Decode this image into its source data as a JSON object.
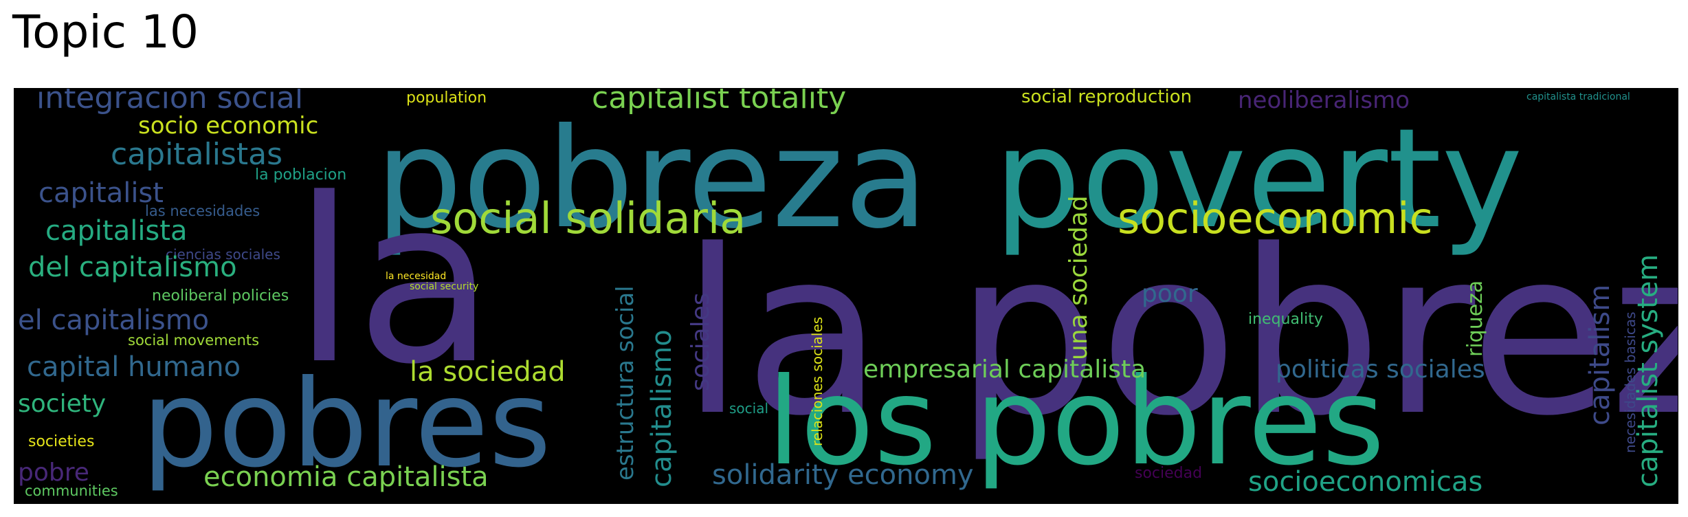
{
  "title": "Topic 10",
  "words": [
    {
      "text": "la pobreza",
      "color": "#46327e"
    },
    {
      "text": "pobreza",
      "color": "#287c8e"
    },
    {
      "text": "poverty",
      "color": "#21918c"
    },
    {
      "text": "los pobres",
      "color": "#22a884"
    },
    {
      "text": "pobres",
      "color": "#33638d"
    },
    {
      "text": "la",
      "color": "#46327e"
    },
    {
      "text": "social solidaria",
      "color": "#a0da39"
    },
    {
      "text": "socioeconomic",
      "color": "#c8e020"
    },
    {
      "text": "capitalist totality",
      "color": "#7ad151"
    },
    {
      "text": "integracion social",
      "color": "#3b528b"
    },
    {
      "text": "socio economic",
      "color": "#cae11f"
    },
    {
      "text": "capitalistas",
      "color": "#2a788e"
    },
    {
      "text": "la poblacion",
      "color": "#1fa187"
    },
    {
      "text": "capitalist",
      "color": "#3b528b"
    },
    {
      "text": "las necesidades",
      "color": "#365c8d"
    },
    {
      "text": "capitalista",
      "color": "#25ab82"
    },
    {
      "text": "ciencias sociales",
      "color": "#3e4989"
    },
    {
      "text": "del capitalismo",
      "color": "#2ab07f"
    },
    {
      "text": "la necesidad",
      "color": "#fde725"
    },
    {
      "text": "social security",
      "color": "#b5de2b"
    },
    {
      "text": "neoliberal policies",
      "color": "#5ec962"
    },
    {
      "text": "el capitalismo",
      "color": "#3b528b"
    },
    {
      "text": "social movements",
      "color": "#a0da39"
    },
    {
      "text": "capital humano",
      "color": "#31688e"
    },
    {
      "text": "society",
      "color": "#2fb47c"
    },
    {
      "text": "societies",
      "color": "#e5e419"
    },
    {
      "text": "pobre",
      "color": "#482878"
    },
    {
      "text": "communities",
      "color": "#5ec962"
    },
    {
      "text": "economia capitalista",
      "color": "#7ad151"
    },
    {
      "text": "la sociedad",
      "color": "#addc30"
    },
    {
      "text": "estructura social",
      "color": "#2a788e"
    },
    {
      "text": "capitalismo",
      "color": "#228d8d"
    },
    {
      "text": "sociales",
      "color": "#443983"
    },
    {
      "text": "relaciones sociales",
      "color": "#dde318"
    },
    {
      "text": "social",
      "color": "#1f9f88"
    },
    {
      "text": "solidarity economy",
      "color": "#31688e"
    },
    {
      "text": "empresarial capitalista",
      "color": "#6ece58"
    },
    {
      "text": "una sociedad",
      "color": "#9bd93c"
    },
    {
      "text": "poor",
      "color": "#31688e"
    },
    {
      "text": "social reproduction",
      "color": "#cae11f"
    },
    {
      "text": "population",
      "color": "#dde318"
    },
    {
      "text": "neoliberalismo",
      "color": "#482575"
    },
    {
      "text": "riqueza",
      "color": "#6ece58"
    },
    {
      "text": "inequality",
      "color": "#40bd72"
    },
    {
      "text": "politicas sociales",
      "color": "#31688e"
    },
    {
      "text": "socioeconomicas",
      "color": "#20a386"
    },
    {
      "text": "sociedad",
      "color": "#440154"
    },
    {
      "text": "capitalism",
      "color": "#3e4a89"
    },
    {
      "text": "capitalist system",
      "color": "#27ad81"
    },
    {
      "text": "necesidades basicas",
      "color": "#3e4989"
    },
    {
      "text": "capitalista tradicional",
      "color": "#21918c"
    }
  ]
}
